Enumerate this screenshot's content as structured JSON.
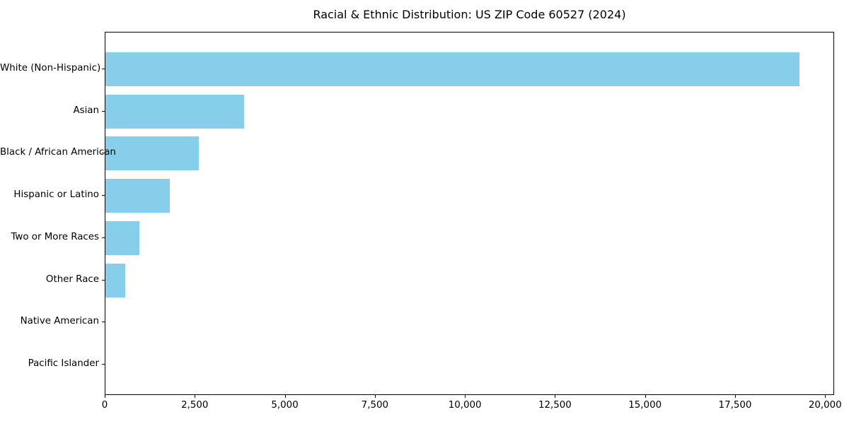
{
  "chart_data": {
    "type": "bar",
    "orientation": "horizontal",
    "title": "Racial & Ethnic Distribution: US ZIP Code 60527 (2024)",
    "categories": [
      "White (Non-Hispanic)",
      "Asian",
      "Black / African American",
      "Hispanic or Latino",
      "Two or More Races",
      "Other Race",
      "Native American",
      "Pacific Islander"
    ],
    "values": [
      19300,
      3850,
      2590,
      1790,
      950,
      550,
      0,
      0
    ],
    "xlabel": "",
    "ylabel": "",
    "xlim": [
      0,
      20250
    ],
    "x_ticks": [
      0,
      2500,
      5000,
      7500,
      10000,
      12500,
      15000,
      17500,
      20000
    ],
    "x_tick_labels": [
      "0",
      "2,500",
      "5,000",
      "7,500",
      "10,000",
      "12,500",
      "15,000",
      "17,500",
      "20,000"
    ],
    "bar_color": "#87CEEB",
    "background_color": "#ffffff",
    "spine_color": "#000000",
    "text_color": "#000000",
    "grid": false,
    "legend": "none"
  }
}
